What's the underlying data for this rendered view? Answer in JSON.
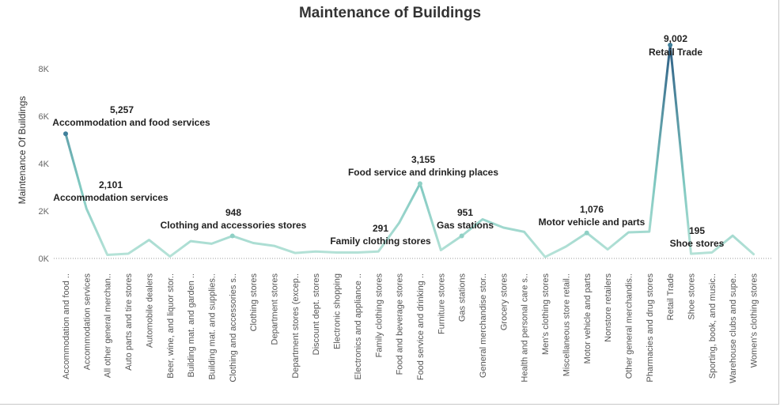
{
  "chart_data": {
    "type": "line",
    "title": "Maintenance of Buildings",
    "xlabel": "",
    "ylabel": "Maintenance Of Buildings",
    "ylim": [
      0,
      9000
    ],
    "yticks": [
      0,
      2000,
      4000,
      6000,
      8000
    ],
    "ytick_labels": [
      "0K",
      "2K",
      "4K",
      "6K",
      "8K"
    ],
    "grid": false,
    "zero_line": "dotted",
    "colors": {
      "low": "#b7e3d8",
      "mid": "#7fc8c0",
      "high": "#2e5f86",
      "text": "#222222"
    },
    "categories": [
      "Accommodation and food ..",
      "Accommodation services",
      "All other general merchan..",
      "Auto parts and tire stores",
      "Automobile dealers",
      "Beer, wine, and liquor stor..",
      "Building mat. and garden ..",
      "Building mat. and supplies..",
      "Clothing and accessories s..",
      "Clothing stores",
      "Department stores",
      "Department stores (excep..",
      "Discount dept. stores",
      "Electronic shopping",
      "Electronics and appliance ..",
      "Family clothing stores",
      "Food and beverage stores",
      "Food service and drinking ..",
      "Furniture stores",
      "Gas stations",
      "General merchandise stor..",
      "Grocery stores",
      "Health and personal care s..",
      "Men's clothing stores",
      "Miscellaneous store retail..",
      "Motor vehicle and parts",
      "Nonstore retailers",
      "Other general merchandis..",
      "Pharmacies and drug stores",
      "Retail Trade",
      "Shoe stores",
      "Sporting, book, and music..",
      "Warehouse clubs and supe..",
      "Women's clothing stores"
    ],
    "values": [
      5257,
      2101,
      150,
      200,
      780,
      80,
      730,
      620,
      948,
      650,
      530,
      230,
      290,
      250,
      250,
      291,
      1500,
      3155,
      350,
      951,
      1650,
      1300,
      1120,
      60,
      500,
      1076,
      380,
      1100,
      1130,
      9002,
      195,
      250,
      960,
      180
    ],
    "annotations": [
      {
        "index": 0,
        "value": "5,257",
        "label": "Accommodation and food services",
        "marker": true
      },
      {
        "index": 1,
        "value": "2,101",
        "label": "Accommodation services",
        "marker": false
      },
      {
        "index": 8,
        "value": "948",
        "label": "Clothing and accessories stores",
        "marker": true
      },
      {
        "index": 15,
        "value": "291",
        "label": "Family clothing stores",
        "marker": false
      },
      {
        "index": 17,
        "value": "3,155",
        "label": "Food service and drinking places",
        "marker": true
      },
      {
        "index": 19,
        "value": "951",
        "label": "Gas stations",
        "marker": true
      },
      {
        "index": 25,
        "value": "1,076",
        "label": "Motor vehicle and parts",
        "marker": true
      },
      {
        "index": 29,
        "value": "9,002",
        "label": "Retail Trade",
        "marker": true
      },
      {
        "index": 30,
        "value": "195",
        "label": "Shoe stores",
        "marker": false
      }
    ]
  }
}
